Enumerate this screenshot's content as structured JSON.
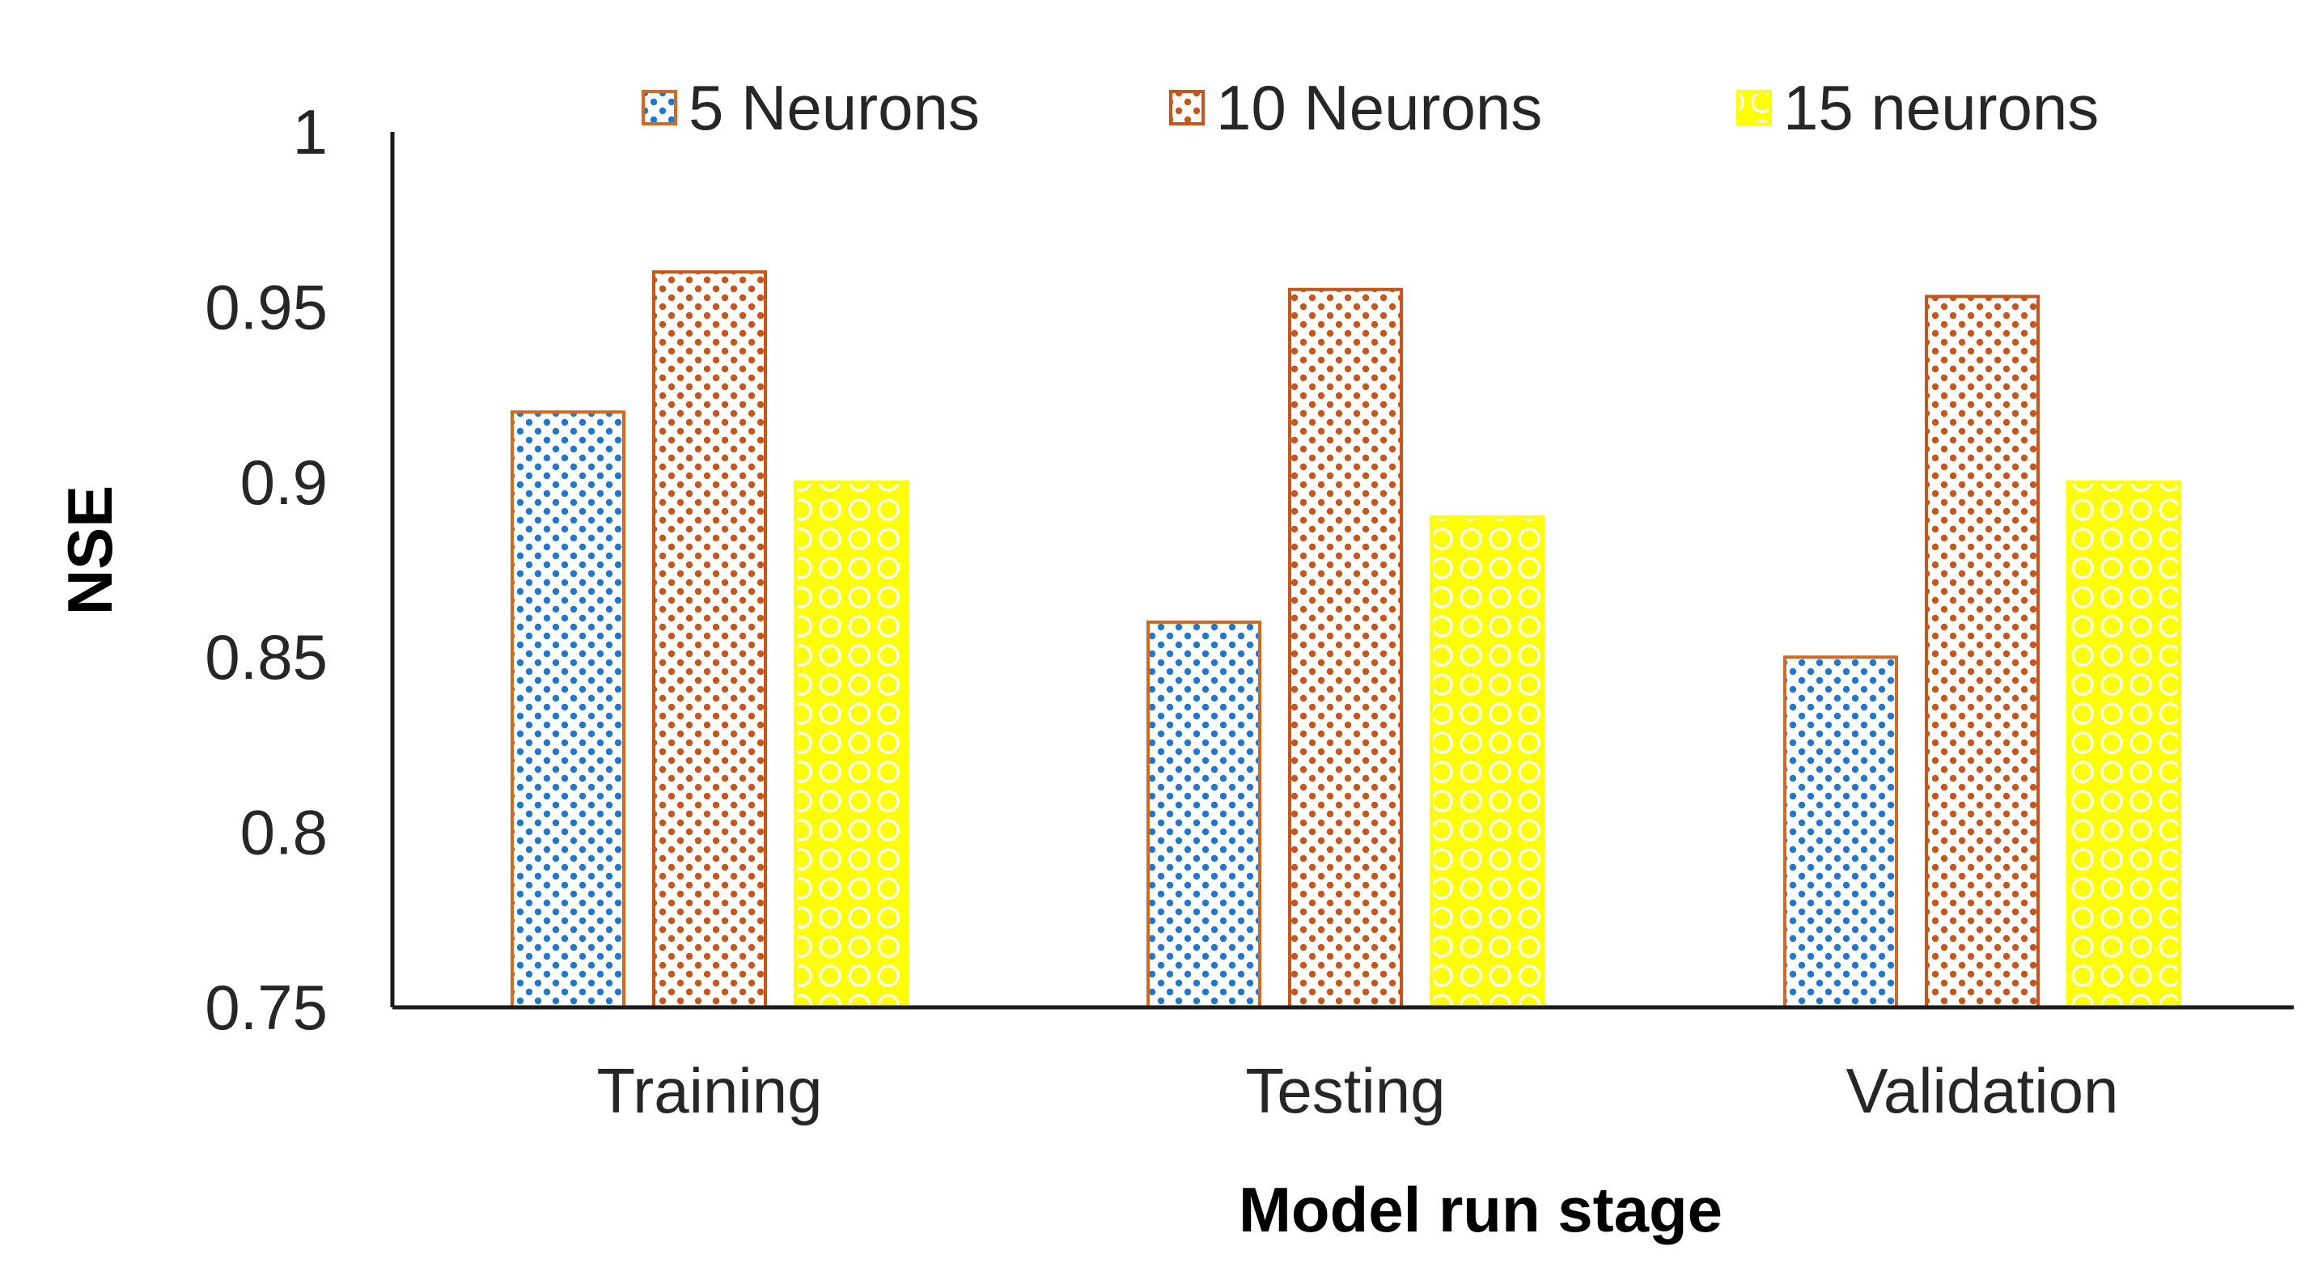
{
  "chart_data": {
    "type": "bar",
    "title": "",
    "xlabel": "Model run stage",
    "ylabel": "NSE",
    "categories": [
      "Training",
      "Testing",
      "Validation"
    ],
    "series": [
      {
        "name": "5 Neurons",
        "values": [
          0.92,
          0.86,
          0.85
        ],
        "color": "#1f77d0",
        "edge": "#d2691e",
        "pattern": "blue-dots"
      },
      {
        "name": "10 Neurons",
        "values": [
          0.96,
          0.955,
          0.953
        ],
        "color": "#c8561a",
        "edge": "#c8561a",
        "pattern": "orange-dots"
      },
      {
        "name": "15 neurons",
        "values": [
          0.9,
          0.89,
          0.9
        ],
        "color": "#ffff00",
        "edge": "#ffff00",
        "pattern": "yellow-circles"
      }
    ],
    "ylim": [
      0.75,
      1.0
    ],
    "yticks": [
      "0.75",
      "0.8",
      "0.85",
      "0.9",
      "0.95",
      "1"
    ],
    "grid": false,
    "legend": "top"
  }
}
